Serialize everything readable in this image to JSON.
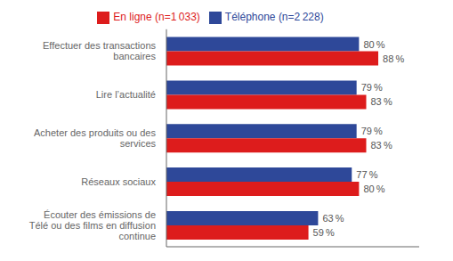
{
  "chart_data": {
    "type": "bar",
    "orientation": "horizontal",
    "categories": [
      "Effectuer des transactions\nbancaires",
      "Lire l’actualité",
      "Acheter des produits ou des\nservices",
      "Réseaux sociaux",
      "Écouter des émissions de\nTélé ou des films en diffusion\ncontinue"
    ],
    "series": [
      {
        "name": "Téléphone (n=2 228)",
        "color": "#2E4899",
        "values": [
          80,
          79,
          79,
          77,
          63
        ],
        "value_labels": [
          "80 %",
          "79 %",
          "79 %",
          "77 %",
          "63 %"
        ]
      },
      {
        "name": "En ligne (n=1 033)",
        "color": "#DD1C1C",
        "values": [
          88,
          83,
          83,
          80,
          59
        ],
        "value_labels": [
          "88 %",
          "83 %",
          "83 %",
          "80 %",
          "59 %"
        ]
      }
    ],
    "xlim": [
      0,
      105
    ],
    "data_labels": true,
    "tick_labels": "y",
    "legend": "top",
    "grid": false
  }
}
